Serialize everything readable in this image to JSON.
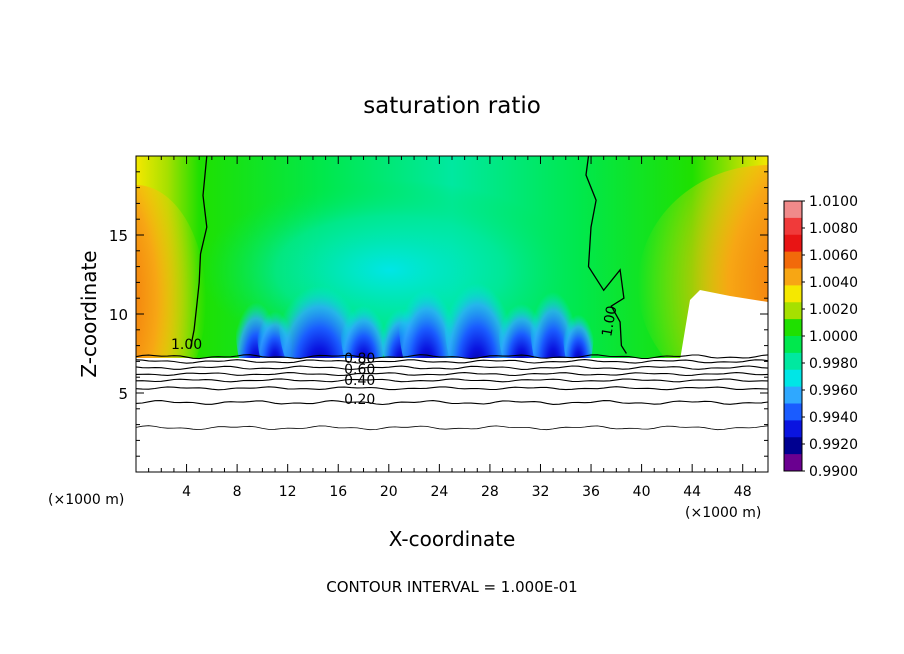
{
  "chart_data": {
    "type": "heatmap",
    "title": "saturation ratio",
    "xlabel": "X-coordinate",
    "ylabel": "Z-coordinate",
    "x_unit": "(×1000 m)",
    "z_unit": "(×1000 m)",
    "xlim": [
      0,
      50
    ],
    "ylim": [
      0,
      20
    ],
    "x_ticks": [
      4,
      8,
      12,
      16,
      20,
      24,
      28,
      32,
      36,
      40,
      44,
      48
    ],
    "y_ticks": [
      5,
      10,
      15
    ],
    "x_tick_labels": [
      "4",
      "8",
      "12",
      "16",
      "20",
      "24",
      "28",
      "32",
      "36",
      "40",
      "44",
      "48"
    ],
    "y_tick_labels": [
      "5",
      "10",
      "15"
    ],
    "footer": "CONTOUR INTERVAL = 1.000E-01",
    "colorbar": {
      "labels": [
        "1.0100",
        "1.0080",
        "1.0060",
        "1.0040",
        "1.0020",
        "1.0000",
        "0.9980",
        "0.9960",
        "0.9940",
        "0.9920",
        "0.9900"
      ],
      "colors": [
        "#f08a8a",
        "#f03a3a",
        "#e81414",
        "#f26a0a",
        "#f7a614",
        "#f5e800",
        "#a6e000",
        "#1fe000",
        "#00e84d",
        "#00e8a0",
        "#00e6e6",
        "#2fa8ff",
        "#1a5cff",
        "#0a14e0",
        "#000090",
        "#6a0090"
      ]
    },
    "contour_labels": [
      {
        "text": "1.00",
        "x": 4.0,
        "z": 7.8
      },
      {
        "text": "1.00",
        "x": 37.8,
        "z": 9.5
      },
      {
        "text": "0.80",
        "x": 17.7,
        "z": 6.9
      },
      {
        "text": "0.60",
        "x": 17.7,
        "z": 6.2
      },
      {
        "text": "0.40",
        "x": 17.7,
        "z": 5.5
      },
      {
        "text": "0.20",
        "x": 17.7,
        "z": 4.3
      }
    ],
    "contour_levels_below": [
      0.2,
      0.4,
      0.6,
      0.8
    ],
    "grid": false
  }
}
